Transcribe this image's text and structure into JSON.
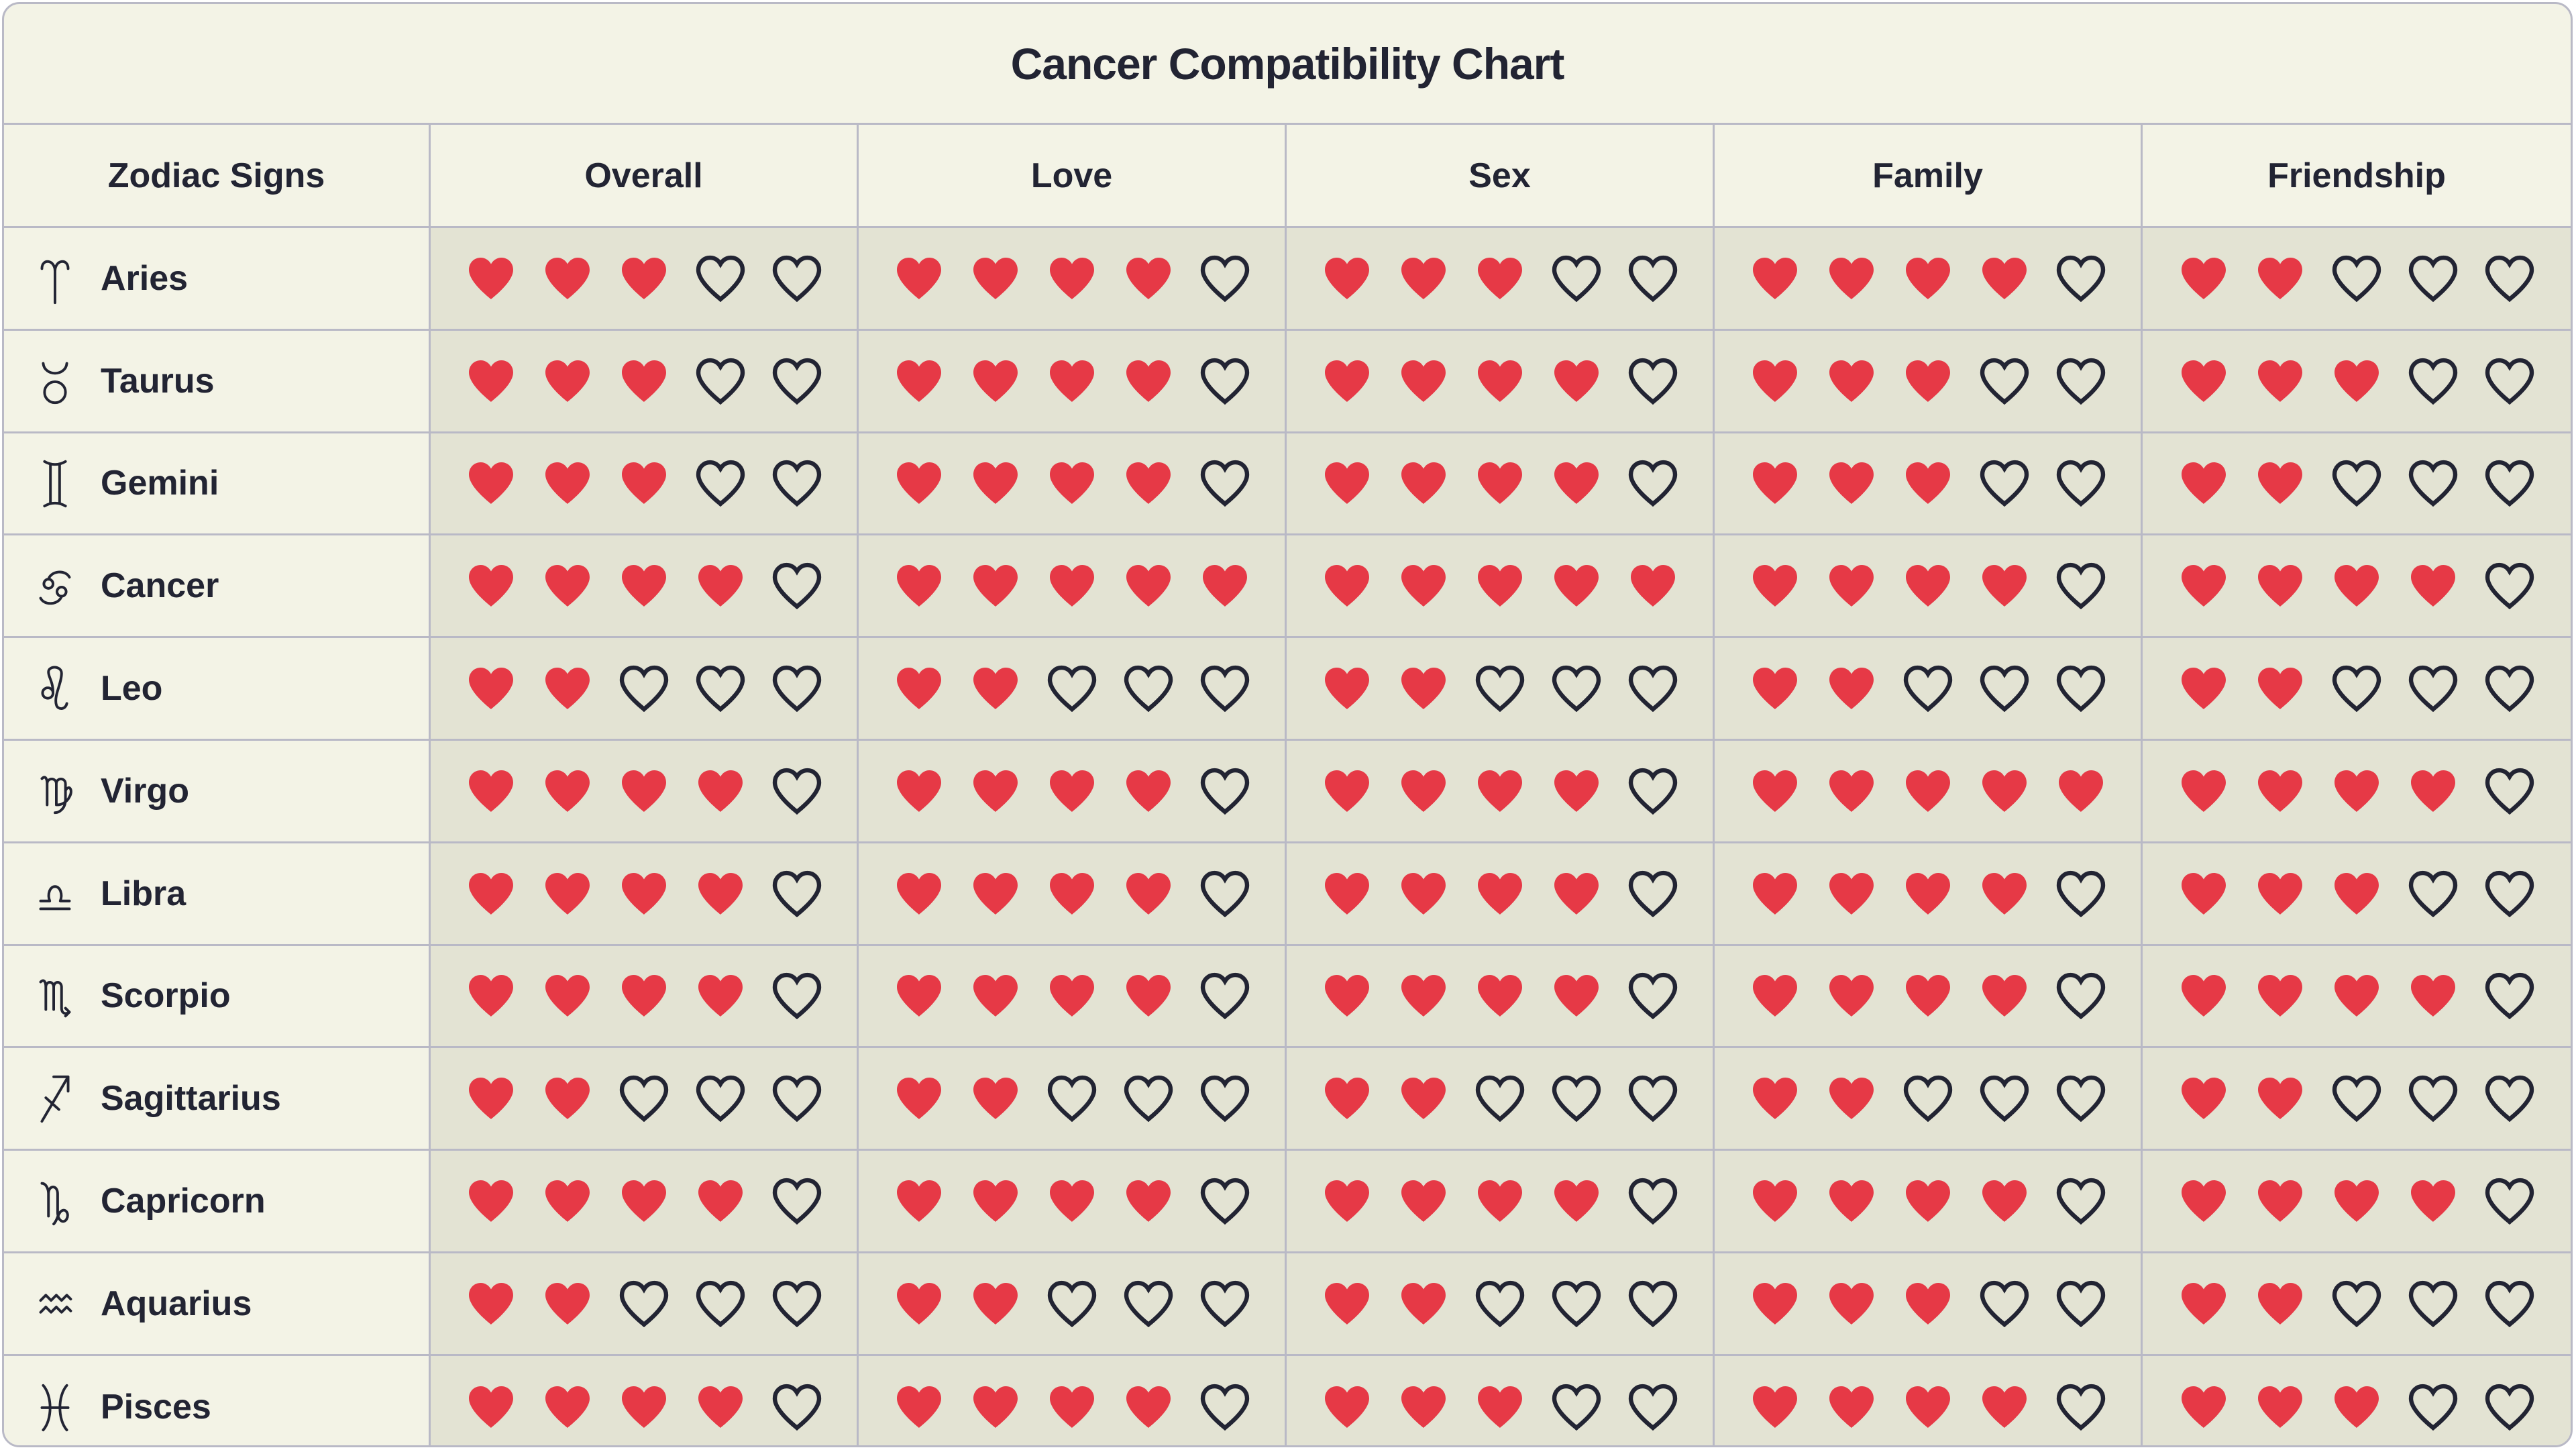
{
  "title": "Cancer Compatibility Chart",
  "colors": {
    "filled_heart": "#e63946",
    "empty_heart_outline": "#222433",
    "header_bg": "#f3f3e6",
    "cell_bg": "#e3e3d3",
    "border": "#b9b9c6"
  },
  "chart_data": {
    "type": "table",
    "title": "Cancer Compatibility Chart",
    "scale_max": 5,
    "columns": [
      "Zodiac Signs",
      "Overall",
      "Love",
      "Sex",
      "Family",
      "Friendship"
    ],
    "rows": [
      {
        "sign": "Aries",
        "icon": "aries-icon",
        "values": [
          3,
          4,
          3,
          4,
          2
        ]
      },
      {
        "sign": "Taurus",
        "icon": "taurus-icon",
        "values": [
          3,
          4,
          4,
          3,
          3
        ]
      },
      {
        "sign": "Gemini",
        "icon": "gemini-icon",
        "values": [
          3,
          4,
          4,
          3,
          2
        ]
      },
      {
        "sign": "Cancer",
        "icon": "cancer-icon",
        "values": [
          4,
          5,
          5,
          4,
          4
        ]
      },
      {
        "sign": "Leo",
        "icon": "leo-icon",
        "values": [
          2,
          2,
          2,
          2,
          2
        ]
      },
      {
        "sign": "Virgo",
        "icon": "virgo-icon",
        "values": [
          4,
          4,
          4,
          5,
          4
        ]
      },
      {
        "sign": "Libra",
        "icon": "libra-icon",
        "values": [
          4,
          4,
          4,
          4,
          3
        ]
      },
      {
        "sign": "Scorpio",
        "icon": "scorpio-icon",
        "values": [
          4,
          4,
          4,
          4,
          4
        ]
      },
      {
        "sign": "Sagittarius",
        "icon": "sagittarius-icon",
        "values": [
          2,
          2,
          2,
          2,
          2
        ]
      },
      {
        "sign": "Capricorn",
        "icon": "capricorn-icon",
        "values": [
          4,
          4,
          4,
          4,
          4
        ]
      },
      {
        "sign": "Aquarius",
        "icon": "aquarius-icon",
        "values": [
          2,
          2,
          2,
          3,
          2
        ]
      },
      {
        "sign": "Pisces",
        "icon": "pisces-icon",
        "values": [
          4,
          4,
          3,
          4,
          3
        ]
      }
    ]
  }
}
